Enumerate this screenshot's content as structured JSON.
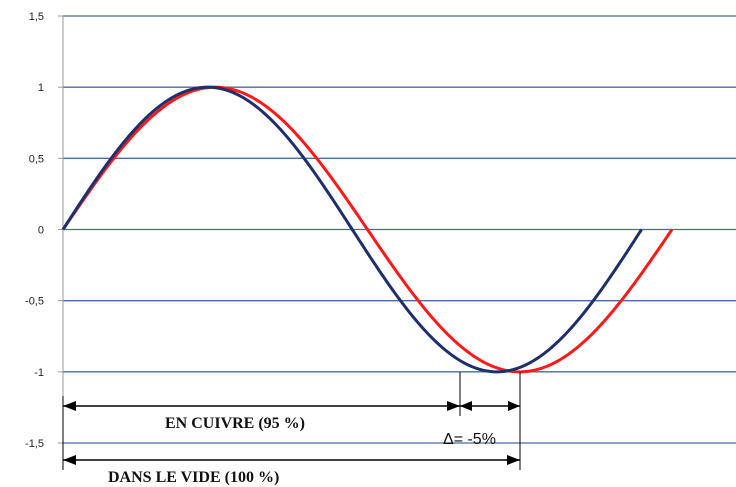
{
  "chart_data": {
    "type": "line",
    "title": "",
    "xlabel": "",
    "ylabel": "",
    "ylim": [
      -1.5,
      1.5
    ],
    "yticks": [
      1.5,
      1,
      0.5,
      0,
      -0.5,
      -1,
      -1.5
    ],
    "ytick_labels": [
      "1,5",
      "1",
      "0,5",
      "0",
      "-0,5",
      "-1",
      "-1,5"
    ],
    "grid": true,
    "x_period_ratio_blue": 0.95,
    "series": [
      {
        "values_description_x": "sine over one period",
        "color": "#1f2f6b",
        "x": [
          0,
          0.125,
          0.25,
          0.375,
          0.5,
          0.625,
          0.75,
          0.875,
          0.95
        ],
        "y": [
          0,
          0.87,
          1,
          0.59,
          0,
          -0.59,
          -1,
          -0.87,
          0
        ]
      },
      {
        "color": "#ff1a1a",
        "x": [
          0,
          0.125,
          0.25,
          0.375,
          0.5,
          0.625,
          0.75,
          0.875,
          1
        ],
        "y": [
          0,
          0.71,
          1,
          0.71,
          0,
          -0.71,
          -1,
          -0.71,
          0
        ]
      }
    ],
    "annotations": {
      "copper": "EN CUIVRE (95 %)",
      "vacuum": "DANS LE VIDE (100 %)",
      "delta": "Δ= -5%"
    },
    "colors": {
      "grid": "#4a6aa0",
      "axis": "#9a9a9a",
      "blue": "#1f2f6b",
      "red": "#ff1a1a"
    }
  }
}
